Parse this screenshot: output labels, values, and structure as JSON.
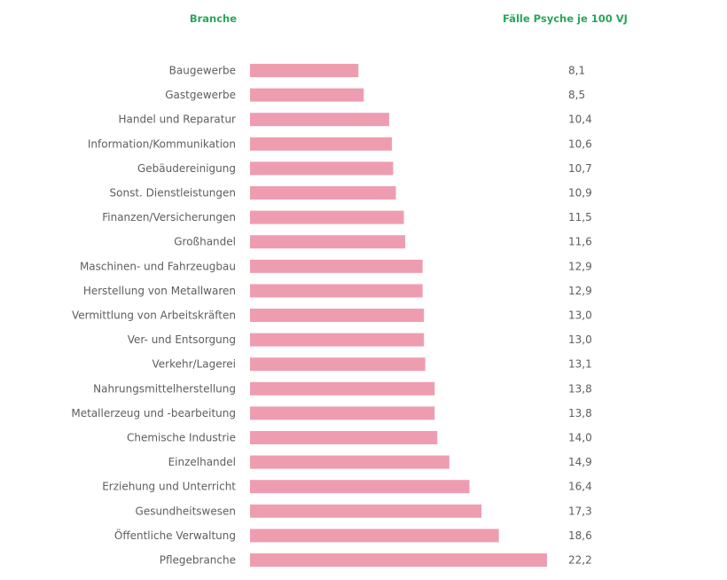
{
  "header": {
    "category_label": "Branche",
    "value_label": "Fälle Psyche je 100 VJ"
  },
  "colors": {
    "bar": "#ee9db0",
    "header": "#2aa65a",
    "text": "#5e5e5e"
  },
  "chart_data": {
    "type": "bar",
    "orientation": "horizontal",
    "categories": [
      "Baugewerbe",
      "Gastgewerbe",
      "Handel und Reparatur",
      "Information/Kommunikation",
      "Gebäudereinigung",
      "Sonst. Dienstleistungen",
      "Finanzen/Versicherungen",
      "Großhandel",
      "Maschinen- und Fahrzeugbau",
      "Herstellung von Metallwaren",
      "Vermittlung von Arbeitskräften",
      "Ver- und Entsorgung",
      "Verkehr/Lagerei",
      "Nahrungsmittelherstellung",
      "Metallerzeug und -bearbeitung",
      "Chemische Industrie",
      "Einzelhandel",
      "Erziehung und Unterricht",
      "Gesundheitswesen",
      "Öffentliche Verwaltung",
      "Pflegebranche"
    ],
    "values": [
      8.1,
      8.5,
      10.4,
      10.6,
      10.7,
      10.9,
      11.5,
      11.6,
      12.9,
      12.9,
      13.0,
      13.0,
      13.1,
      13.8,
      13.8,
      14.0,
      14.9,
      16.4,
      17.3,
      18.6,
      22.2
    ],
    "value_labels": [
      "8,1",
      "8,5",
      "10,4",
      "10,6",
      "10,7",
      "10,9",
      "11,5",
      "11,6",
      "12,9",
      "12,9",
      "13,0",
      "13,0",
      "13,1",
      "13,8",
      "13,8",
      "14,0",
      "14,9",
      "16,4",
      "17,3",
      "18,6",
      "22,2"
    ],
    "xlim": [
      0,
      22.2
    ],
    "grid": false,
    "legend": "none"
  }
}
